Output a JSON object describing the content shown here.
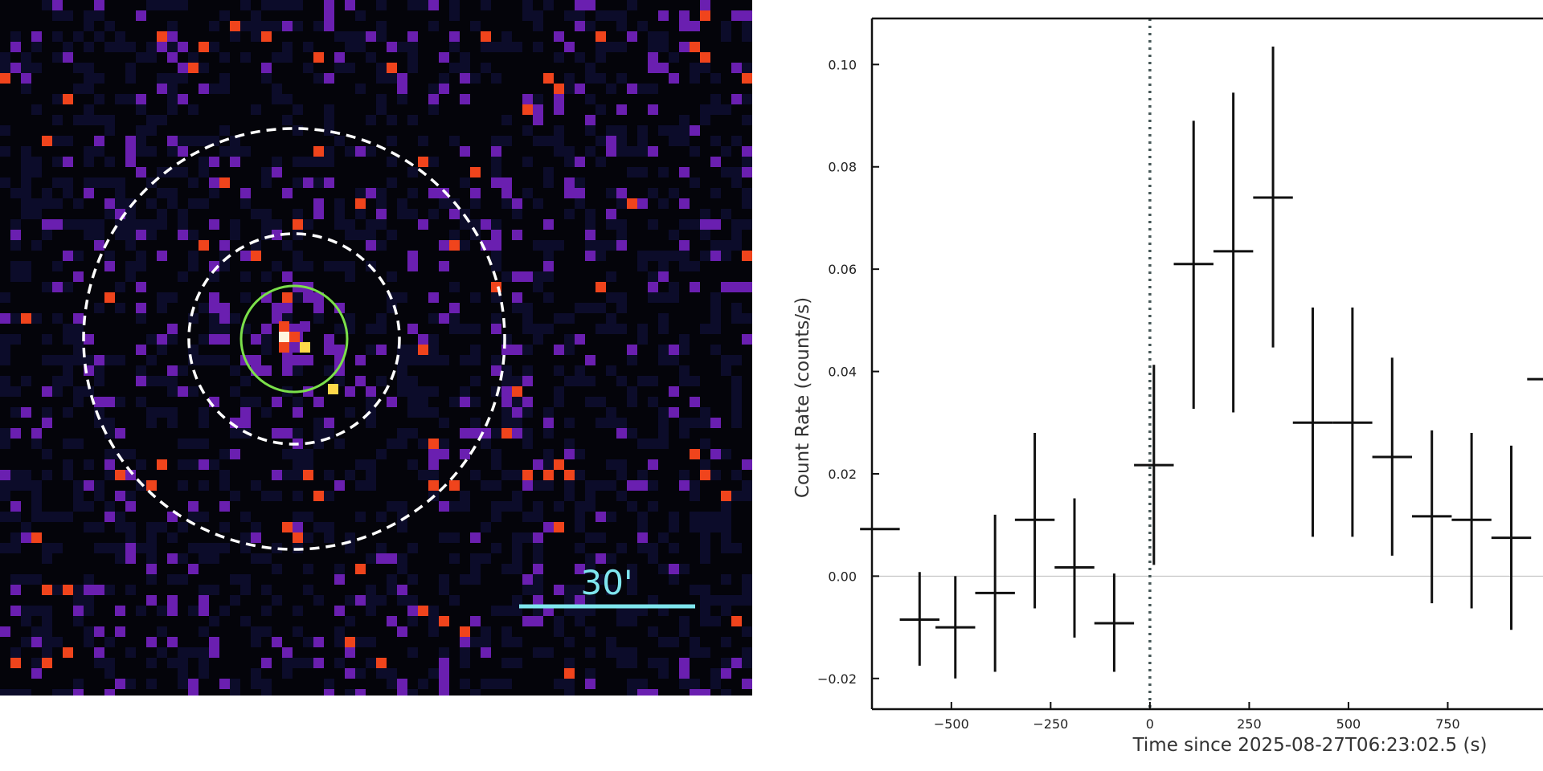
{
  "image_panel": {
    "scale_bar_label": "30'",
    "colors": {
      "background": "#04040a",
      "dim_pixel": "#0c0c2a",
      "purple_pixel": "#6a1fb0",
      "orange_pixel": "#f0441c",
      "yellow_pixel": "#ffd84a",
      "white_pixel": "#fff6e0",
      "source_region": "#7be04a",
      "background_annulus": "#ffffff",
      "scale_bar": "#7fe6ee"
    }
  },
  "chart_data": {
    "type": "scatter",
    "xlabel": "Time since 2025-08-27T06:23:02.5 (s)",
    "ylabel": "Count Rate (counts/s)",
    "xlim": [
      -700,
      1000
    ],
    "ylim": [
      -0.026,
      0.109
    ],
    "x_ticks": [
      -500,
      -250,
      0,
      250,
      500,
      750
    ],
    "x_tick_labels": [
      "−500",
      "−250",
      "0",
      "250",
      "500",
      "750"
    ],
    "y_ticks": [
      -0.02,
      0.0,
      0.02,
      0.04,
      0.06,
      0.08,
      0.1
    ],
    "y_tick_labels": [
      "−0.02",
      "0.00",
      "0.02",
      "0.04",
      "0.06",
      "0.08",
      "0.10"
    ],
    "reference_line_y": 0,
    "trigger_line_x": 0,
    "series": [
      {
        "points": [
          {
            "x": -680,
            "xerr": 50,
            "y": 0.0092,
            "yerr": 0
          },
          {
            "x": -580,
            "xerr": 50,
            "y": -0.0085,
            "ylow": -0.0175,
            "yhigh": 0.0008
          },
          {
            "x": -490,
            "xerr": 50,
            "y": -0.01,
            "ylow": -0.02,
            "yhigh": 0.0
          },
          {
            "x": -390,
            "xerr": 50,
            "y": -0.0033,
            "ylow": -0.0187,
            "yhigh": 0.012
          },
          {
            "x": -290,
            "xerr": 50,
            "y": 0.011,
            "ylow": -0.0063,
            "yhigh": 0.028
          },
          {
            "x": -190,
            "xerr": 50,
            "y": 0.0017,
            "ylow": -0.012,
            "yhigh": 0.0152
          },
          {
            "x": -90,
            "xerr": 50,
            "y": -0.0092,
            "ylow": -0.0187,
            "yhigh": 0.0005
          },
          {
            "x": 10,
            "xerr": 50,
            "y": 0.0217,
            "ylow": 0.0022,
            "yhigh": 0.0413
          },
          {
            "x": 110,
            "xerr": 50,
            "y": 0.061,
            "ylow": 0.0327,
            "yhigh": 0.089
          },
          {
            "x": 210,
            "xerr": 50,
            "y": 0.0635,
            "ylow": 0.032,
            "yhigh": 0.0945
          },
          {
            "x": 310,
            "xerr": 50,
            "y": 0.074,
            "ylow": 0.0447,
            "yhigh": 0.1035
          },
          {
            "x": 410,
            "xerr": 50,
            "y": 0.03,
            "ylow": 0.0077,
            "yhigh": 0.0525
          },
          {
            "x": 510,
            "xerr": 50,
            "y": 0.03,
            "ylow": 0.0077,
            "yhigh": 0.0525
          },
          {
            "x": 610,
            "xerr": 50,
            "y": 0.0233,
            "ylow": 0.004,
            "yhigh": 0.0427
          },
          {
            "x": 710,
            "xerr": 50,
            "y": 0.0117,
            "ylow": -0.0053,
            "yhigh": 0.0285
          },
          {
            "x": 810,
            "xerr": 50,
            "y": 0.011,
            "ylow": -0.0063,
            "yhigh": 0.028
          },
          {
            "x": 910,
            "xerr": 50,
            "y": 0.0075,
            "ylow": -0.0105,
            "yhigh": 0.0255
          },
          {
            "x": 990,
            "xerr": 40,
            "y": 0.0385,
            "yerr": 0
          }
        ]
      }
    ]
  }
}
